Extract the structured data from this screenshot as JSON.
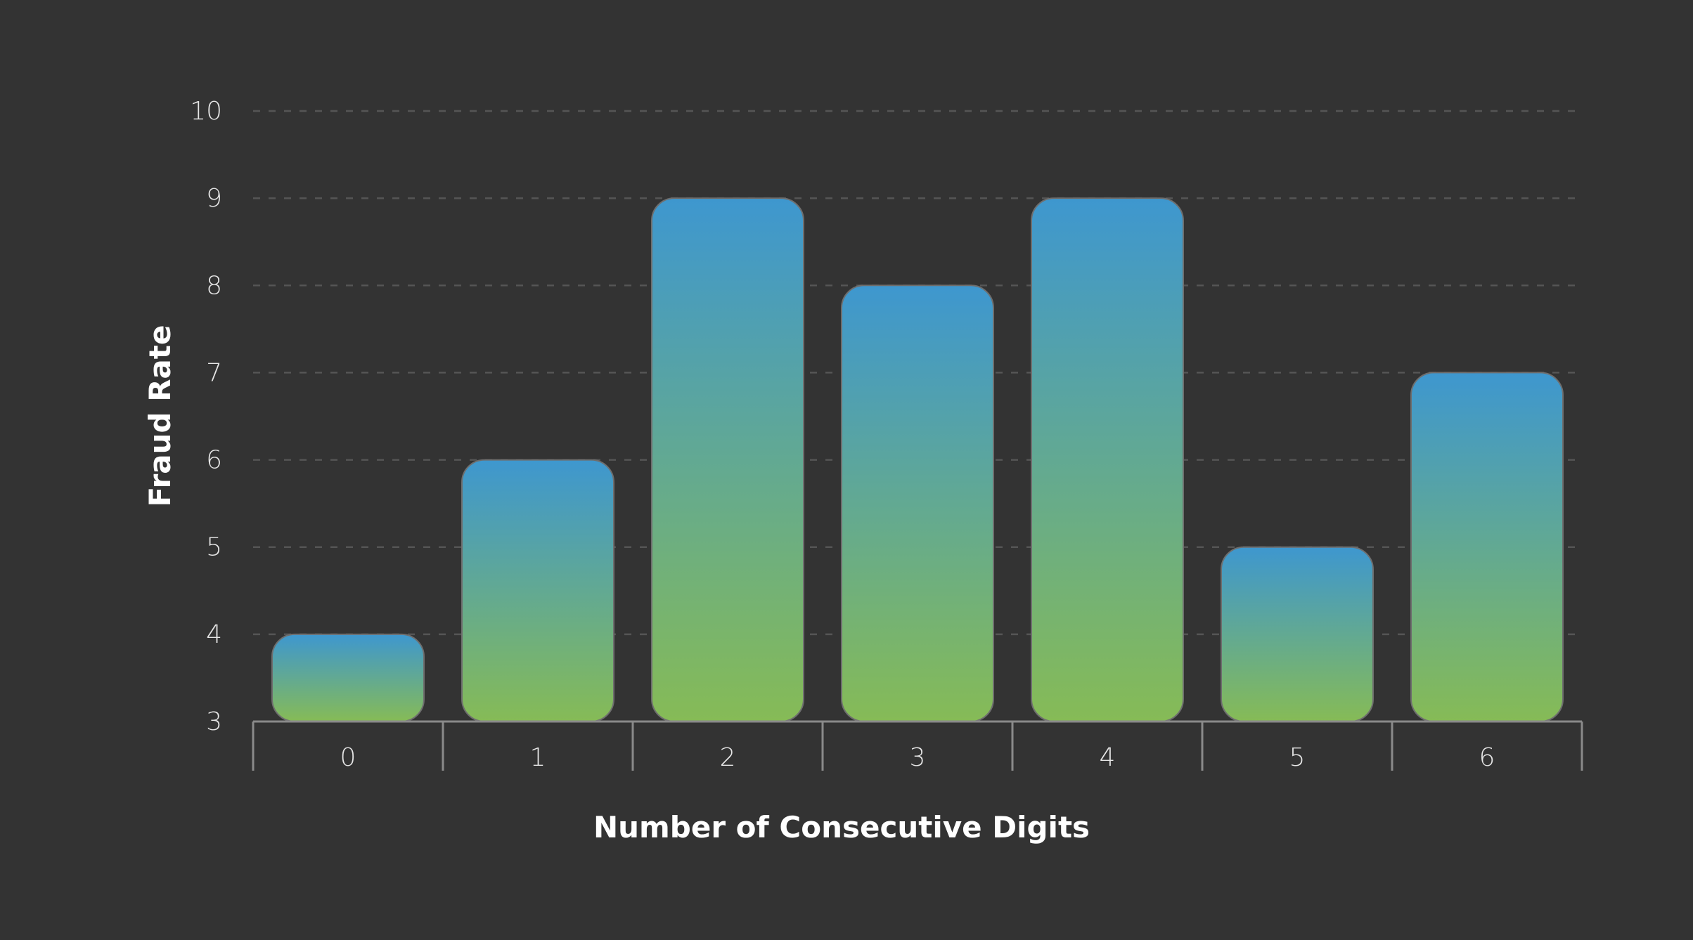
{
  "chart_data": {
    "type": "bar",
    "categories": [
      "0",
      "1",
      "2",
      "3",
      "4",
      "5",
      "6"
    ],
    "values": [
      4,
      6,
      9,
      8,
      9,
      5,
      7
    ],
    "xlabel": "Number of Consecutive Digits",
    "ylabel": "Fraud Rate",
    "ylim": [
      3,
      10
    ],
    "yticks": [
      "3",
      "4",
      "5",
      "6",
      "7",
      "8",
      "9",
      "10"
    ],
    "grid": "horizontal-dashed",
    "legend": "none",
    "colors": {
      "background": "#333333",
      "bar_top": "#3e97cf",
      "bar_bottom": "#86bb56",
      "grid": "#555555",
      "axis": "#8a8a8a",
      "text": "#e6e6e6",
      "title": "#ffffff"
    }
  }
}
